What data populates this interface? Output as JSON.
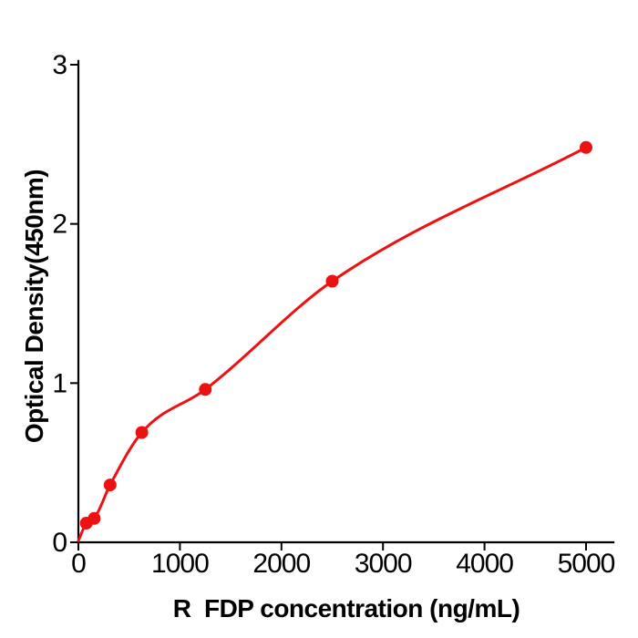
{
  "chart_data": {
    "type": "scatter",
    "title": "",
    "xlabel": "R  FDP concentration (ng/mL)",
    "ylabel": "Optical Density(450nm)",
    "x": [
      78,
      156,
      312,
      625,
      1250,
      2500,
      5000
    ],
    "y": [
      0.12,
      0.15,
      0.36,
      0.69,
      0.96,
      1.64,
      2.48
    ],
    "fit_curve": {
      "style": "smooth-through-points",
      "start_anchor": {
        "x": 0,
        "y": 0.01
      }
    },
    "xlim": [
      0,
      5280
    ],
    "ylim": [
      0,
      3.03
    ],
    "x_ticks": [
      0,
      1000,
      2000,
      3000,
      4000,
      5000
    ],
    "x_tick_labels": [
      "0",
      "1000",
      "2000",
      "3000",
      "4000",
      "5000"
    ],
    "y_ticks": [
      0,
      1,
      2,
      3
    ],
    "y_tick_labels": [
      "0",
      "1",
      "2",
      "3"
    ],
    "grid": false,
    "legend": "none",
    "colors": {
      "line": "#ee1111",
      "marker": "#ee1111",
      "axis": "#000000",
      "text": "#000000",
      "background": "#ffffff"
    }
  }
}
